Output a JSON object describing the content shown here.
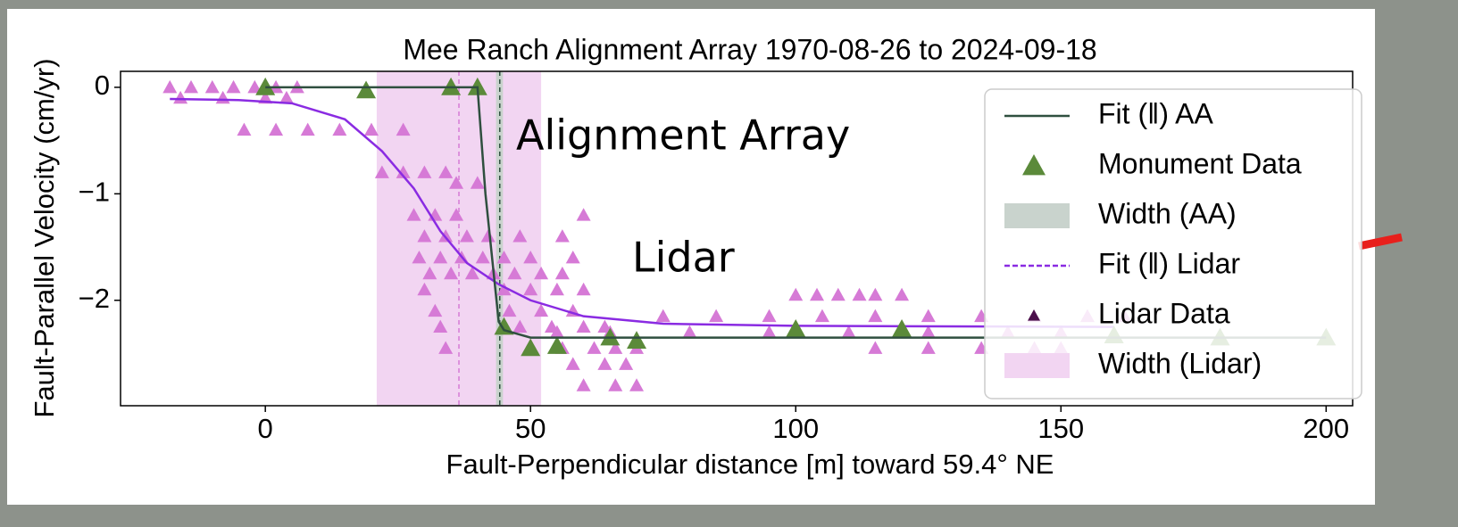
{
  "chart_data": {
    "type": "scatter",
    "title": "Mee Ranch Alignment Array 1970-08-26 to 2024-09-18",
    "x_label": "Fault-Perpendicular distance [m] toward 59.4° NE",
    "y_label": "Fault-Parallel Velocity (cm/yr)",
    "xlim": [
      -27.3,
      205
    ],
    "ylim": [
      -2.99,
      0.15
    ],
    "xticks": [
      0,
      50,
      100,
      150,
      200
    ],
    "yticks": [
      0,
      {
        "value": -1,
        "label": "−1"
      },
      {
        "value": -2,
        "label": "−2"
      }
    ],
    "legend": "upper right",
    "series": [
      {
        "name": "Width (Lidar)",
        "type": "band",
        "color": "#f2d5f2",
        "x": [
          21,
          52
        ],
        "center": 36.5,
        "center_color": "#d67ad6"
      },
      {
        "name": "Width (AA)",
        "type": "band",
        "color": "#c9d3cd",
        "x": [
          43.5,
          44.8
        ],
        "center": 44.2,
        "center_color": "#2f4f3f"
      },
      {
        "name": "Lidar Data",
        "type": "scatter",
        "color": "#d67ad6",
        "legend_color": "#4b0f4b",
        "x": [
          -18,
          -14,
          -10,
          -6,
          -2,
          2,
          6,
          -16,
          -8,
          0,
          4,
          -4,
          2,
          8,
          14,
          20,
          26,
          22,
          26,
          30,
          34,
          36,
          40,
          28,
          32,
          36,
          60,
          30,
          34,
          38,
          42,
          48,
          56,
          29,
          33,
          37,
          41,
          45,
          50,
          58,
          31,
          35,
          39,
          43,
          47,
          52,
          56,
          30,
          45,
          50,
          55,
          60,
          32,
          46,
          52,
          58,
          33,
          48,
          54,
          60,
          64,
          34,
          50,
          56,
          62,
          66,
          70,
          58,
          64,
          68,
          60,
          66,
          70,
          75,
          85,
          95,
          105,
          115,
          125,
          135,
          145,
          155,
          162,
          55,
          65,
          80,
          95,
          110,
          125,
          140,
          150,
          115,
          125,
          135,
          145,
          150,
          100,
          104,
          108,
          112,
          115,
          120
        ],
        "values": [
          0,
          0,
          0,
          0,
          0,
          0,
          0,
          -0.1,
          -0.1,
          -0.1,
          -0.1,
          -0.4,
          -0.4,
          -0.4,
          -0.4,
          -0.4,
          -0.4,
          -0.8,
          -0.8,
          -0.8,
          -0.8,
          -0.9,
          -0.9,
          -1.2,
          -1.2,
          -1.2,
          -1.2,
          -1.4,
          -1.4,
          -1.4,
          -1.4,
          -1.4,
          -1.4,
          -1.6,
          -1.6,
          -1.6,
          -1.6,
          -1.6,
          -1.6,
          -1.6,
          -1.75,
          -1.75,
          -1.75,
          -1.75,
          -1.75,
          -1.75,
          -1.75,
          -1.9,
          -1.9,
          -1.9,
          -1.9,
          -1.9,
          -2.1,
          -2.1,
          -2.1,
          -2.1,
          -2.25,
          -2.25,
          -2.25,
          -2.25,
          -2.25,
          -2.45,
          -2.45,
          -2.45,
          -2.45,
          -2.45,
          -2.45,
          -2.6,
          -2.6,
          -2.6,
          -2.8,
          -2.8,
          -2.8,
          -2.15,
          -2.15,
          -2.15,
          -2.15,
          -2.15,
          -2.15,
          -2.15,
          -2.15,
          -2.15,
          -2.15,
          -2.3,
          -2.3,
          -2.3,
          -2.3,
          -2.3,
          -2.3,
          -2.3,
          -2.3,
          -2.45,
          -2.45,
          -2.45,
          -2.45,
          -2.45,
          -1.95,
          -1.95,
          -1.95,
          -1.95,
          -1.95,
          -1.95
        ]
      },
      {
        "name": "Fit (‖) Lidar",
        "type": "line",
        "dashed_legend": true,
        "color": "#8a2be2",
        "x": [
          -18,
          -5,
          5,
          15,
          22,
          28,
          33,
          38,
          44,
          50,
          60,
          75,
          100,
          160
        ],
        "values": [
          -0.11,
          -0.12,
          -0.15,
          -0.3,
          -0.6,
          -0.95,
          -1.35,
          -1.65,
          -1.85,
          -2.0,
          -2.15,
          -2.22,
          -2.24,
          -2.25
        ]
      },
      {
        "name": "Monument Data",
        "type": "scatter",
        "color": "#5b8a3a",
        "x": [
          0,
          19,
          35,
          40,
          45,
          50,
          55,
          65,
          70,
          100,
          120,
          160,
          180,
          200
        ],
        "values": [
          0,
          -0.03,
          0,
          0,
          -2.25,
          -2.45,
          -2.43,
          -2.35,
          -2.38,
          -2.27,
          -2.27,
          -2.33,
          -2.35,
          -2.35
        ]
      },
      {
        "name": "Fit (‖) AA",
        "type": "line",
        "color": "#2f4f3f",
        "x": [
          0,
          40,
          41.5,
          44,
          45,
          50,
          200
        ],
        "values": [
          0,
          0,
          -1,
          -2.2,
          -2.28,
          -2.35,
          -2.35
        ]
      }
    ],
    "legend_order": [
      5,
      4,
      1,
      3,
      2,
      0
    ],
    "annotations": [
      {
        "text": "Alignment Array",
        "color": "#16ad52"
      },
      {
        "text": "Lidar",
        "color": "#d67ad6"
      }
    ]
  }
}
